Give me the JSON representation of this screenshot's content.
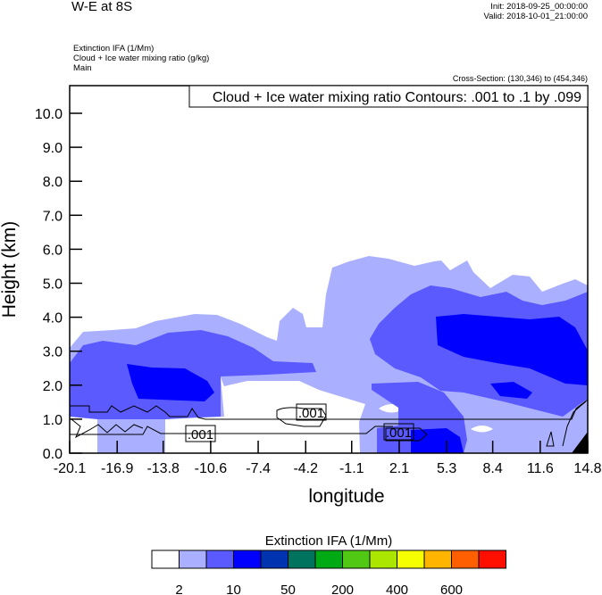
{
  "header": {
    "title": "W-E at 8S",
    "init": "Init: 2018-09-25_00:00:00",
    "valid": "Valid: 2018-10-01_21:00:00",
    "fields": [
      "Extinction IFA   (1/Mm)",
      "Cloud + Ice water mixing ratio   (g/kg)",
      "Main"
    ],
    "cross_section": "Cross-Section: (130,346) to (454,346)"
  },
  "chart_data": {
    "type": "contour",
    "title": "W-E at 8S",
    "contour_info": "Cloud + Ice water mixing ratio Contours: .001 to .1 by .099",
    "contour_labels": [
      ".001",
      ".001",
      ".001"
    ],
    "xlabel": "longitude",
    "ylabel": "Height (km)",
    "xlim": [
      -20.1,
      14.8
    ],
    "ylim": [
      0,
      10.8
    ],
    "xticks": [
      "-20.1",
      "-16.9",
      "-13.8",
      "-10.6",
      "-7.4",
      "-4.2",
      "-1.1",
      "2.1",
      "5.3",
      "8.4",
      "11.6",
      "14.8"
    ],
    "yticks": [
      "0.0",
      "1.0",
      "2.0",
      "3.0",
      "4.0",
      "5.0",
      "6.0",
      "7.0",
      "8.0",
      "9.0",
      "10.0"
    ],
    "colorbar": {
      "title": "Extinction IFA  (1/Mm)",
      "colors": [
        "#ffffff",
        "#aab0ff",
        "#5a5aff",
        "#0000ff",
        "#0033b0",
        "#00735f",
        "#00aa14",
        "#50c814",
        "#aae600",
        "#f5ff00",
        "#ffb400",
        "#ff5f00",
        "#ff0f00"
      ],
      "labels": [
        {
          "boundary": 1,
          "text": "2"
        },
        {
          "boundary": 3,
          "text": "10"
        },
        {
          "boundary": 5,
          "text": "50"
        },
        {
          "boundary": 7,
          "text": "200"
        },
        {
          "boundary": 9,
          "text": "400"
        },
        {
          "boundary": 11,
          "text": "600"
        }
      ]
    }
  }
}
